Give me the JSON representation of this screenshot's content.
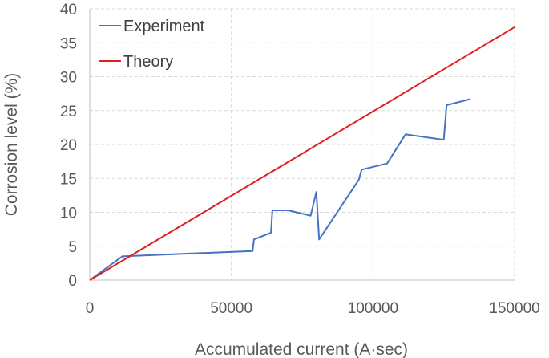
{
  "chart_data": {
    "type": "line",
    "title": "",
    "xlabel": "Accumulated current (A·sec)",
    "ylabel": "Corrosion level (%)",
    "xlim": [
      0,
      150000
    ],
    "ylim": [
      0,
      40
    ],
    "xticks": [
      0,
      50000,
      100000,
      150000
    ],
    "yticks": [
      0,
      5,
      10,
      15,
      20,
      25,
      30,
      35,
      40
    ],
    "xtick_labels": [
      "0",
      "50000",
      "100000",
      "150000"
    ],
    "ytick_labels": [
      "0",
      "5",
      "10",
      "15",
      "20",
      "25",
      "30",
      "35",
      "40"
    ],
    "grid": true,
    "legend_position": "top-left",
    "series": [
      {
        "name": "Experiment",
        "color": "#4472C4",
        "x": [
          0,
          11500,
          57500,
          58000,
          64000,
          64500,
          70000,
          78000,
          80000,
          81000,
          95000,
          96000,
          105000,
          111500,
          125000,
          126000,
          134500
        ],
        "y": [
          0,
          3.5,
          4.3,
          6.0,
          7.0,
          10.3,
          10.3,
          9.5,
          13.0,
          6.0,
          14.8,
          16.3,
          17.2,
          21.5,
          20.7,
          25.8,
          26.7
        ]
      },
      {
        "name": "Theory",
        "color": "#E02020",
        "x": [
          0,
          150000
        ],
        "y": [
          0,
          37.3
        ]
      }
    ]
  }
}
